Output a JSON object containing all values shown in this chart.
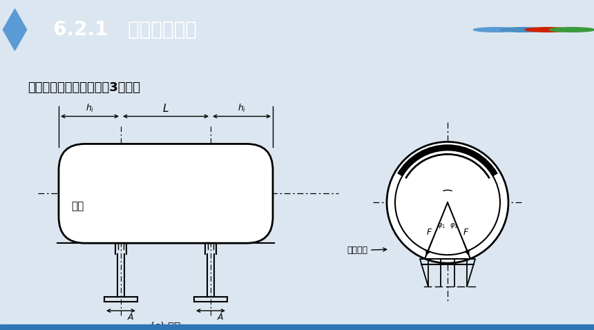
{
  "bg_color": "#dce6f0",
  "header_color": "#1a237e",
  "header_text": "6.2.1   卧式容器支座",
  "subtitle": "卧式容器的支座有三种：3．支腿",
  "caption": "(c) 支腿",
  "label_qiexian": "切线",
  "label_buqiang": "补强垫板",
  "label_L": "L",
  "label_hi_left": "$h_i$",
  "label_hi_right": "$h_i$",
  "label_A_left": "A",
  "label_A_right": "A",
  "label_F_left": "F",
  "label_F_right": "F",
  "title_fontsize": 22,
  "subtitle_fontsize": 14
}
